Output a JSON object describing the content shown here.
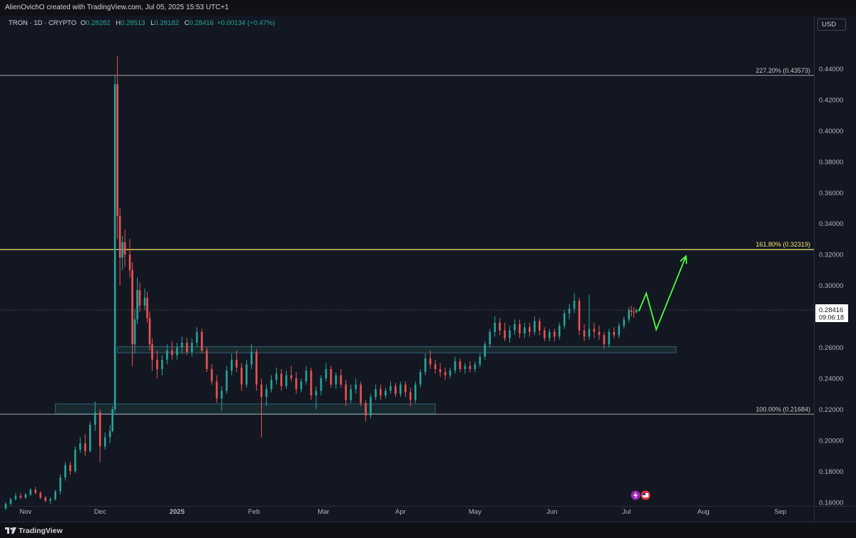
{
  "header": {
    "credit": "AlienOvichO created with TradingView.com, Jul 05, 2025 15:53 UTC+1"
  },
  "legend": {
    "symbol": "TRON · 1D · CRYPTO",
    "open_label": "O",
    "open": "0.28282",
    "high_label": "H",
    "high": "0.28513",
    "low_label": "L",
    "low": "0.28182",
    "close_label": "C",
    "close": "0.28416",
    "change": "+0.00134 (+0.47%)"
  },
  "currency_button": "USD",
  "footer": {
    "brand": "TradingView"
  },
  "colors": {
    "background": "#131722",
    "up": "#26a69a",
    "down": "#ef5350",
    "fib_161": "#f5e46a",
    "fib_other": "#c8c8c8",
    "zone_fill": "#1e3a3a",
    "projection": "#4cff3a"
  },
  "chart_data": {
    "type": "candlestick",
    "y_ticks": [
      "0.44000",
      "0.42000",
      "0.40000",
      "0.38000",
      "0.36000",
      "0.34000",
      "0.32000",
      "0.30000",
      "0.28000",
      "0.26000",
      "0.24000",
      "0.22000",
      "0.20000",
      "0.18000",
      "0.16000"
    ],
    "ylim": [
      0.15,
      0.45
    ],
    "x_ticks": [
      "Nov",
      "Dec",
      "2025",
      "Feb",
      "Mar",
      "Apr",
      "May",
      "Jun",
      "Jul",
      "Aug",
      "Sep"
    ],
    "x_range": [
      "2024-10-24",
      "2025-09-30"
    ],
    "last_price": {
      "value": 0.28416,
      "label": "0.28416",
      "countdown": "09:06:18"
    },
    "fib_levels": [
      {
        "label": "227.20% (0.43573)",
        "value": 0.43573,
        "highlight": false
      },
      {
        "label": "161.80% (0.32319)",
        "value": 0.32319,
        "highlight": true
      },
      {
        "label": "100.00% (0.21684)",
        "value": 0.21684,
        "highlight": false
      }
    ],
    "zones": [
      {
        "from": "2024-11-13",
        "to": "2025-04-15",
        "low": 0.2172,
        "high": 0.2235
      },
      {
        "from": "2024-12-08",
        "to": "2025-07-21",
        "low": 0.2565,
        "high": 0.2605
      }
    ],
    "projection": [
      {
        "date": "2025-07-06",
        "price": 0.2835
      },
      {
        "date": "2025-07-09",
        "price": 0.295
      },
      {
        "date": "2025-07-13",
        "price": 0.2715
      },
      {
        "date": "2025-07-25",
        "price": 0.319
      }
    ],
    "candles": [
      [
        "2024-10-24",
        0.156,
        0.16,
        0.155,
        0.159
      ],
      [
        "2024-10-26",
        0.159,
        0.163,
        0.158,
        0.162
      ],
      [
        "2024-10-28",
        0.162,
        0.166,
        0.161,
        0.164
      ],
      [
        "2024-10-30",
        0.164,
        0.166,
        0.162,
        0.163
      ],
      [
        "2024-11-01",
        0.163,
        0.166,
        0.162,
        0.165
      ],
      [
        "2024-11-03",
        0.165,
        0.169,
        0.164,
        0.168
      ],
      [
        "2024-11-05",
        0.168,
        0.17,
        0.165,
        0.166
      ],
      [
        "2024-11-07",
        0.166,
        0.167,
        0.162,
        0.163
      ],
      [
        "2024-11-09",
        0.163,
        0.164,
        0.16,
        0.161
      ],
      [
        "2024-11-11",
        0.161,
        0.163,
        0.159,
        0.162
      ],
      [
        "2024-11-13",
        0.162,
        0.168,
        0.161,
        0.167
      ],
      [
        "2024-11-15",
        0.167,
        0.178,
        0.165,
        0.176
      ],
      [
        "2024-11-17",
        0.176,
        0.186,
        0.174,
        0.184
      ],
      [
        "2024-11-19",
        0.184,
        0.186,
        0.178,
        0.18
      ],
      [
        "2024-11-21",
        0.18,
        0.196,
        0.179,
        0.194
      ],
      [
        "2024-11-23",
        0.194,
        0.202,
        0.192,
        0.198
      ],
      [
        "2024-11-25",
        0.198,
        0.204,
        0.19,
        0.193
      ],
      [
        "2024-11-27",
        0.193,
        0.212,
        0.192,
        0.21
      ],
      [
        "2024-11-29",
        0.21,
        0.225,
        0.206,
        0.218
      ],
      [
        "2024-12-01",
        0.218,
        0.22,
        0.186,
        0.196
      ],
      [
        "2024-12-03",
        0.196,
        0.205,
        0.194,
        0.202
      ],
      [
        "2024-12-05",
        0.202,
        0.21,
        0.198,
        0.206
      ],
      [
        "2024-12-06",
        0.206,
        0.222,
        0.205,
        0.22
      ],
      [
        "2024-12-07",
        0.22,
        0.436,
        0.218,
        0.43
      ],
      [
        "2024-12-08",
        0.43,
        0.448,
        0.33,
        0.345
      ],
      [
        "2024-12-09",
        0.345,
        0.35,
        0.3,
        0.318
      ],
      [
        "2024-12-10",
        0.318,
        0.332,
        0.31,
        0.328
      ],
      [
        "2024-12-11",
        0.328,
        0.336,
        0.312,
        0.32
      ],
      [
        "2024-12-13",
        0.32,
        0.33,
        0.305,
        0.31
      ],
      [
        "2024-12-14",
        0.31,
        0.315,
        0.248,
        0.262
      ],
      [
        "2024-12-15",
        0.262,
        0.285,
        0.256,
        0.278
      ],
      [
        "2024-12-16",
        0.278,
        0.305,
        0.275,
        0.297
      ],
      [
        "2024-12-17",
        0.297,
        0.302,
        0.283,
        0.287
      ],
      [
        "2024-12-19",
        0.287,
        0.298,
        0.284,
        0.292
      ],
      [
        "2024-12-20",
        0.292,
        0.296,
        0.276,
        0.279
      ],
      [
        "2024-12-21",
        0.279,
        0.283,
        0.258,
        0.262
      ],
      [
        "2024-12-22",
        0.262,
        0.266,
        0.245,
        0.252
      ],
      [
        "2024-12-24",
        0.252,
        0.258,
        0.24,
        0.246
      ],
      [
        "2024-12-26",
        0.246,
        0.255,
        0.242,
        0.252
      ],
      [
        "2024-12-28",
        0.252,
        0.262,
        0.249,
        0.258
      ],
      [
        "2024-12-30",
        0.258,
        0.264,
        0.252,
        0.255
      ],
      [
        "2025-01-01",
        0.255,
        0.263,
        0.252,
        0.26
      ],
      [
        "2025-01-03",
        0.26,
        0.267,
        0.256,
        0.263
      ],
      [
        "2025-01-05",
        0.263,
        0.266,
        0.255,
        0.257
      ],
      [
        "2025-01-07",
        0.257,
        0.266,
        0.254,
        0.263
      ],
      [
        "2025-01-09",
        0.263,
        0.273,
        0.26,
        0.27
      ],
      [
        "2025-01-11",
        0.27,
        0.272,
        0.256,
        0.258
      ],
      [
        "2025-01-13",
        0.258,
        0.26,
        0.244,
        0.246
      ],
      [
        "2025-01-15",
        0.246,
        0.249,
        0.236,
        0.238
      ],
      [
        "2025-01-17",
        0.238,
        0.242,
        0.224,
        0.227
      ],
      [
        "2025-01-19",
        0.227,
        0.235,
        0.219,
        0.232
      ],
      [
        "2025-01-21",
        0.232,
        0.248,
        0.23,
        0.245
      ],
      [
        "2025-01-23",
        0.245,
        0.256,
        0.242,
        0.252
      ],
      [
        "2025-01-25",
        0.252,
        0.258,
        0.244,
        0.247
      ],
      [
        "2025-01-27",
        0.247,
        0.25,
        0.232,
        0.236
      ],
      [
        "2025-01-29",
        0.236,
        0.252,
        0.234,
        0.249
      ],
      [
        "2025-01-31",
        0.249,
        0.262,
        0.246,
        0.257
      ],
      [
        "2025-02-02",
        0.257,
        0.259,
        0.232,
        0.236
      ],
      [
        "2025-02-04",
        0.236,
        0.24,
        0.202,
        0.228
      ],
      [
        "2025-02-06",
        0.228,
        0.236,
        0.222,
        0.233
      ],
      [
        "2025-02-08",
        0.233,
        0.242,
        0.231,
        0.239
      ],
      [
        "2025-02-10",
        0.239,
        0.247,
        0.236,
        0.243
      ],
      [
        "2025-02-12",
        0.243,
        0.246,
        0.232,
        0.235
      ],
      [
        "2025-02-14",
        0.235,
        0.245,
        0.233,
        0.242
      ],
      [
        "2025-02-16",
        0.242,
        0.248,
        0.238,
        0.24
      ],
      [
        "2025-02-18",
        0.24,
        0.244,
        0.23,
        0.233
      ],
      [
        "2025-02-20",
        0.233,
        0.24,
        0.231,
        0.238
      ],
      [
        "2025-02-22",
        0.238,
        0.248,
        0.236,
        0.245
      ],
      [
        "2025-02-24",
        0.245,
        0.247,
        0.226,
        0.229
      ],
      [
        "2025-02-26",
        0.229,
        0.235,
        0.22,
        0.232
      ],
      [
        "2025-02-28",
        0.232,
        0.242,
        0.229,
        0.24
      ],
      [
        "2025-03-02",
        0.24,
        0.25,
        0.238,
        0.246
      ],
      [
        "2025-03-04",
        0.246,
        0.248,
        0.234,
        0.236
      ],
      [
        "2025-03-06",
        0.236,
        0.244,
        0.233,
        0.242
      ],
      [
        "2025-03-08",
        0.242,
        0.246,
        0.234,
        0.236
      ],
      [
        "2025-03-10",
        0.236,
        0.239,
        0.222,
        0.226
      ],
      [
        "2025-03-12",
        0.226,
        0.236,
        0.224,
        0.233
      ],
      [
        "2025-03-14",
        0.233,
        0.24,
        0.23,
        0.236
      ],
      [
        "2025-03-16",
        0.236,
        0.238,
        0.222,
        0.224
      ],
      [
        "2025-03-18",
        0.224,
        0.226,
        0.212,
        0.216
      ],
      [
        "2025-03-20",
        0.216,
        0.23,
        0.214,
        0.228
      ],
      [
        "2025-03-22",
        0.228,
        0.236,
        0.226,
        0.233
      ],
      [
        "2025-03-24",
        0.233,
        0.236,
        0.226,
        0.229
      ],
      [
        "2025-03-26",
        0.229,
        0.234,
        0.227,
        0.232
      ],
      [
        "2025-03-28",
        0.232,
        0.238,
        0.23,
        0.235
      ],
      [
        "2025-03-30",
        0.235,
        0.237,
        0.228,
        0.23
      ],
      [
        "2025-04-01",
        0.23,
        0.238,
        0.228,
        0.236
      ],
      [
        "2025-04-03",
        0.236,
        0.238,
        0.228,
        0.231
      ],
      [
        "2025-04-05",
        0.231,
        0.234,
        0.222,
        0.226
      ],
      [
        "2025-04-07",
        0.226,
        0.238,
        0.224,
        0.236
      ],
      [
        "2025-04-09",
        0.236,
        0.246,
        0.234,
        0.244
      ],
      [
        "2025-04-11",
        0.244,
        0.256,
        0.242,
        0.253
      ],
      [
        "2025-04-13",
        0.253,
        0.258,
        0.246,
        0.249
      ],
      [
        "2025-04-15",
        0.249,
        0.252,
        0.243,
        0.246
      ],
      [
        "2025-04-17",
        0.246,
        0.25,
        0.241,
        0.244
      ],
      [
        "2025-04-19",
        0.244,
        0.247,
        0.239,
        0.242
      ],
      [
        "2025-04-21",
        0.242,
        0.247,
        0.24,
        0.245
      ],
      [
        "2025-04-23",
        0.245,
        0.254,
        0.243,
        0.251
      ],
      [
        "2025-04-25",
        0.251,
        0.253,
        0.244,
        0.246
      ],
      [
        "2025-04-27",
        0.246,
        0.25,
        0.243,
        0.248
      ],
      [
        "2025-04-29",
        0.248,
        0.251,
        0.244,
        0.246
      ],
      [
        "2025-05-01",
        0.246,
        0.251,
        0.244,
        0.249
      ],
      [
        "2025-05-03",
        0.249,
        0.256,
        0.247,
        0.254
      ],
      [
        "2025-05-05",
        0.254,
        0.264,
        0.252,
        0.262
      ],
      [
        "2025-05-07",
        0.262,
        0.272,
        0.26,
        0.27
      ],
      [
        "2025-05-09",
        0.27,
        0.28,
        0.267,
        0.276
      ],
      [
        "2025-05-11",
        0.276,
        0.279,
        0.268,
        0.271
      ],
      [
        "2025-05-13",
        0.271,
        0.276,
        0.264,
        0.266
      ],
      [
        "2025-05-15",
        0.266,
        0.274,
        0.263,
        0.271
      ],
      [
        "2025-05-17",
        0.271,
        0.278,
        0.268,
        0.275
      ],
      [
        "2025-05-19",
        0.275,
        0.278,
        0.266,
        0.269
      ],
      [
        "2025-05-21",
        0.269,
        0.276,
        0.266,
        0.273
      ],
      [
        "2025-05-23",
        0.273,
        0.276,
        0.267,
        0.27
      ],
      [
        "2025-05-25",
        0.27,
        0.28,
        0.268,
        0.277
      ],
      [
        "2025-05-27",
        0.277,
        0.279,
        0.268,
        0.271
      ],
      [
        "2025-05-29",
        0.271,
        0.273,
        0.264,
        0.266
      ],
      [
        "2025-05-31",
        0.266,
        0.272,
        0.264,
        0.27
      ],
      [
        "2025-06-02",
        0.27,
        0.272,
        0.264,
        0.267
      ],
      [
        "2025-06-04",
        0.267,
        0.276,
        0.265,
        0.274
      ],
      [
        "2025-06-06",
        0.274,
        0.284,
        0.272,
        0.282
      ],
      [
        "2025-06-08",
        0.282,
        0.288,
        0.278,
        0.285
      ],
      [
        "2025-06-10",
        0.285,
        0.295,
        0.282,
        0.29
      ],
      [
        "2025-06-12",
        0.29,
        0.292,
        0.268,
        0.271
      ],
      [
        "2025-06-14",
        0.271,
        0.275,
        0.264,
        0.267
      ],
      [
        "2025-06-16",
        0.267,
        0.294,
        0.265,
        0.272
      ],
      [
        "2025-06-18",
        0.272,
        0.276,
        0.266,
        0.27
      ],
      [
        "2025-06-20",
        0.27,
        0.274,
        0.265,
        0.268
      ],
      [
        "2025-06-22",
        0.268,
        0.27,
        0.259,
        0.262
      ],
      [
        "2025-06-24",
        0.262,
        0.272,
        0.26,
        0.27
      ],
      [
        "2025-06-26",
        0.27,
        0.273,
        0.266,
        0.268
      ],
      [
        "2025-06-28",
        0.268,
        0.276,
        0.266,
        0.274
      ],
      [
        "2025-06-30",
        0.274,
        0.28,
        0.272,
        0.278
      ],
      [
        "2025-07-02",
        0.278,
        0.286,
        0.276,
        0.284
      ],
      [
        "2025-07-03",
        0.284,
        0.287,
        0.28,
        0.283
      ],
      [
        "2025-07-04",
        0.283,
        0.286,
        0.279,
        0.2828
      ],
      [
        "2025-07-05",
        0.28282,
        0.28513,
        0.28182,
        0.28416
      ]
    ]
  }
}
